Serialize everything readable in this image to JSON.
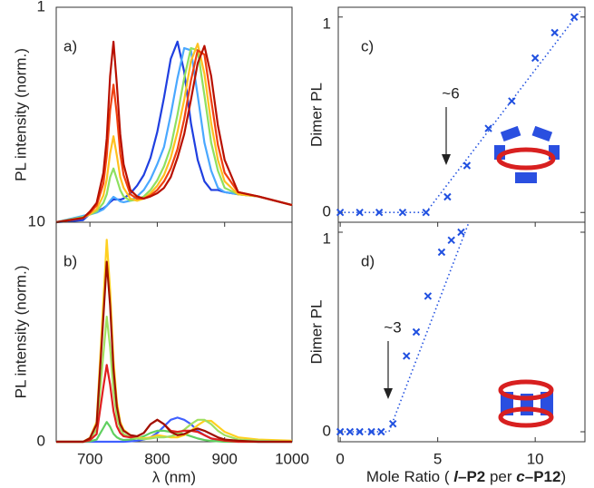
{
  "chart_data": [
    {
      "type": "line",
      "label": "a)",
      "y_label": "PL intensity (norm.)",
      "xlim": [
        650,
        1000
      ],
      "ylim": [
        0,
        1
      ],
      "yticks": [
        0,
        1
      ],
      "x": [
        650,
        690,
        700,
        710,
        720,
        725,
        730,
        735,
        740,
        745,
        750,
        760,
        770,
        780,
        790,
        800,
        810,
        820,
        830,
        840,
        850,
        860,
        870,
        880,
        890,
        900,
        920,
        950,
        1000
      ],
      "series": [
        {
          "color": "#1f3fe0",
          "values": [
            0,
            0.01,
            0.04,
            0.05,
            0.065,
            0.077,
            0.094,
            0.106,
            0.106,
            0.105,
            0.11,
            0.134,
            0.17,
            0.22,
            0.3,
            0.42,
            0.58,
            0.76,
            0.84,
            0.7,
            0.46,
            0.29,
            0.19,
            0.15,
            0.15,
            0.14,
            0.13,
            0.12,
            0.08
          ]
        },
        {
          "color": "#4aa8ff",
          "values": [
            0,
            0.03,
            0.036,
            0.045,
            0.06,
            0.077,
            0.1,
            0.118,
            0.108,
            0.097,
            0.093,
            0.1,
            0.12,
            0.15,
            0.2,
            0.27,
            0.35,
            0.5,
            0.67,
            0.81,
            0.8,
            0.59,
            0.37,
            0.24,
            0.16,
            0.14,
            0.13,
            0.12,
            0.08
          ]
        },
        {
          "color": "#8ee060",
          "values": [
            0,
            0.025,
            0.036,
            0.05,
            0.09,
            0.13,
            0.21,
            0.25,
            0.2,
            0.15,
            0.12,
            0.1,
            0.105,
            0.12,
            0.15,
            0.195,
            0.26,
            0.35,
            0.5,
            0.67,
            0.81,
            0.8,
            0.59,
            0.37,
            0.24,
            0.16,
            0.13,
            0.12,
            0.08
          ]
        },
        {
          "color": "#ffc020",
          "values": [
            0,
            0.02,
            0.038,
            0.06,
            0.125,
            0.2,
            0.32,
            0.4,
            0.31,
            0.21,
            0.16,
            0.11,
            0.1,
            0.11,
            0.135,
            0.17,
            0.22,
            0.3,
            0.42,
            0.57,
            0.75,
            0.83,
            0.69,
            0.46,
            0.29,
            0.19,
            0.13,
            0.12,
            0.08
          ]
        },
        {
          "color": "#f04010",
          "values": [
            0,
            0.02,
            0.044,
            0.078,
            0.18,
            0.31,
            0.52,
            0.64,
            0.5,
            0.32,
            0.22,
            0.13,
            0.11,
            0.11,
            0.125,
            0.15,
            0.19,
            0.25,
            0.34,
            0.48,
            0.66,
            0.8,
            0.78,
            0.57,
            0.36,
            0.23,
            0.14,
            0.12,
            0.08
          ]
        },
        {
          "color": "#b81000",
          "values": [
            0,
            0.02,
            0.05,
            0.09,
            0.23,
            0.39,
            0.68,
            0.84,
            0.64,
            0.41,
            0.27,
            0.15,
            0.12,
            0.11,
            0.12,
            0.135,
            0.16,
            0.21,
            0.3,
            0.41,
            0.57,
            0.74,
            0.82,
            0.68,
            0.45,
            0.29,
            0.14,
            0.12,
            0.08
          ]
        }
      ]
    },
    {
      "type": "line",
      "label": "b)",
      "y_label": "PL intensity (norm.)",
      "x_label": "λ (nm)",
      "xlim": [
        650,
        1000
      ],
      "ylim": [
        0,
        1
      ],
      "yticks": [
        0,
        1
      ],
      "xticks": [
        700,
        800,
        900,
        1000
      ],
      "x": [
        650,
        690,
        700,
        710,
        720,
        725,
        730,
        735,
        740,
        745,
        750,
        760,
        770,
        780,
        790,
        800,
        810,
        820,
        830,
        840,
        850,
        860,
        870,
        880,
        890,
        900,
        920,
        950,
        1000
      ],
      "series": [
        {
          "color": "#4060ff",
          "values": [
            0,
            0,
            0,
            0,
            0,
            0,
            0,
            0,
            0,
            0,
            0,
            0.002,
            0.005,
            0.01,
            0.02,
            0.04,
            0.07,
            0.1,
            0.11,
            0.1,
            0.08,
            0.05,
            0.03,
            0.015,
            0.008,
            0.004,
            0.002,
            0,
            0
          ]
        },
        {
          "color": "#60d060",
          "values": [
            0,
            0,
            0.002,
            0.01,
            0.063,
            0.09,
            0.068,
            0.036,
            0.02,
            0.012,
            0.008,
            0.01,
            0.015,
            0.025,
            0.04,
            0.05,
            0.05,
            0.045,
            0.04,
            0.035,
            0.025,
            0.015,
            0.008,
            0.004,
            0.002,
            0,
            0,
            0,
            0
          ]
        },
        {
          "color": "#ffd020",
          "values": [
            0,
            0,
            0.018,
            0.09,
            0.64,
            0.92,
            0.69,
            0.37,
            0.18,
            0.09,
            0.055,
            0.03,
            0.02,
            0.015,
            0.02,
            0.03,
            0.025,
            0.02,
            0.02,
            0.03,
            0.05,
            0.075,
            0.095,
            0.095,
            0.07,
            0.045,
            0.02,
            0.01,
            0.005
          ]
        },
        {
          "color": "#a0e060",
          "values": [
            0,
            0,
            0.011,
            0.057,
            0.4,
            0.57,
            0.43,
            0.23,
            0.11,
            0.06,
            0.035,
            0.02,
            0.015,
            0.012,
            0.015,
            0.02,
            0.02,
            0.025,
            0.035,
            0.055,
            0.08,
            0.1,
            0.1,
            0.08,
            0.05,
            0.03,
            0.01,
            0.005,
            0
          ]
        },
        {
          "color": "#e02020",
          "values": [
            0,
            0,
            0.007,
            0.035,
            0.25,
            0.35,
            0.26,
            0.14,
            0.07,
            0.04,
            0.025,
            0.02,
            0.025,
            0.04,
            0.08,
            0.1,
            0.08,
            0.05,
            0.045,
            0.05,
            0.05,
            0.045,
            0.03,
            0.015,
            0.01,
            0.005,
            0,
            0,
            0
          ]
        },
        {
          "color": "#a01000",
          "values": [
            0,
            0,
            0.016,
            0.08,
            0.57,
            0.82,
            0.62,
            0.33,
            0.16,
            0.08,
            0.05,
            0.03,
            0.025,
            0.04,
            0.08,
            0.1,
            0.08,
            0.045,
            0.03,
            0.035,
            0.05,
            0.06,
            0.05,
            0.035,
            0.02,
            0.01,
            0.005,
            0,
            0
          ]
        }
      ]
    },
    {
      "type": "scatter",
      "label": "c)",
      "y_label": "Dimer PL",
      "annotation": "~6",
      "xlim": [
        -0.1,
        12.55
      ],
      "ylim": [
        -0.05,
        1.05
      ],
      "yticks": [
        0,
        1
      ],
      "series": [
        {
          "color": "#2050e0",
          "marker": "x",
          "x": [
            0,
            1,
            2,
            3.2,
            4.4,
            5.5,
            6.5,
            7.6,
            8.8,
            10,
            11,
            12
          ],
          "values": [
            0,
            0,
            0,
            0,
            0,
            0.08,
            0.24,
            0.43,
            0.57,
            0.79,
            0.92,
            1
          ]
        },
        {
          "color": "#2050e0",
          "style": "dotted",
          "x": [
            0,
            4.4,
            12.3
          ],
          "values": [
            0,
            0,
            1.03
          ]
        }
      ]
    },
    {
      "type": "scatter",
      "label": "d)",
      "y_label": "Dimer PL",
      "annotation": "~3",
      "x_label_parts": [
        {
          "text": "Mole Ratio ( "
        },
        {
          "text": "l",
          "bold": true,
          "italic": true
        },
        {
          "text": "–P2",
          "bold": true
        },
        {
          "text": " per "
        },
        {
          "text": "c",
          "bold": true,
          "italic": true
        },
        {
          "text": "–P12",
          "bold": true
        },
        {
          "text": ")"
        }
      ],
      "xlim": [
        -0.1,
        12.55
      ],
      "ylim": [
        -0.05,
        1.05
      ],
      "yticks": [
        0,
        1
      ],
      "xticks": [
        0,
        5,
        10
      ],
      "series": [
        {
          "color": "#2050e0",
          "marker": "x",
          "x": [
            0,
            0.5,
            1,
            1.6,
            2.1,
            2.7,
            3.4,
            3.9,
            4.5,
            5.2,
            5.7,
            6.2
          ],
          "values": [
            0,
            0,
            0,
            0,
            0,
            0.04,
            0.38,
            0.5,
            0.68,
            0.9,
            0.96,
            1
          ]
        },
        {
          "color": "#2050e0",
          "style": "dotted",
          "x": [
            0,
            2.5,
            6.6
          ],
          "values": [
            0,
            0,
            1.05
          ]
        }
      ]
    }
  ]
}
